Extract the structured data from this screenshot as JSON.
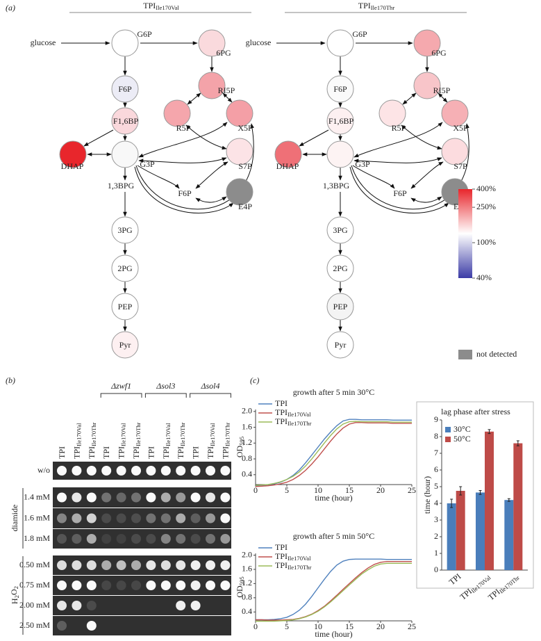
{
  "panel_a": {
    "label": "(a)",
    "diagrams": [
      {
        "title": {
          "text": "TPI",
          "sub": "Ile170Val"
        },
        "input": "glucose",
        "texts": [
          "1,3BPG",
          "F6P"
        ],
        "nodes": [
          {
            "label": "G6P",
            "color": "#ffffff"
          },
          {
            "label": "F6P",
            "color": "#ececf6"
          },
          {
            "label": "F1,6BP",
            "color": "#fad8dc"
          },
          {
            "label": "G3P",
            "color": "#f8f8f8"
          },
          {
            "label": "DHAP",
            "color": "#e8262c"
          },
          {
            "label": "3PG",
            "color": "#ffffff"
          },
          {
            "label": "2PG",
            "color": "#ffffff"
          },
          {
            "label": "PEP",
            "color": "#ffffff"
          },
          {
            "label": "Pyr",
            "color": "#fdf0f1"
          },
          {
            "label": "6PG",
            "color": "#fadadd"
          },
          {
            "label": "RI5P",
            "color": "#f4a3a9"
          },
          {
            "label": "R5P",
            "color": "#f5a6ac"
          },
          {
            "label": "X5P",
            "color": "#f49fa6"
          },
          {
            "label": "S7P",
            "color": "#fce3e6"
          },
          {
            "label": "E4P",
            "color": "#8c8c8c"
          }
        ]
      },
      {
        "title": {
          "text": "TPI",
          "sub": "Ile170Thr"
        },
        "input": "glucose",
        "texts": [
          "1,3BPG",
          "F6P"
        ],
        "nodes": [
          {
            "label": "G6P",
            "color": "#ffffff"
          },
          {
            "label": "F6P",
            "color": "#fafafa"
          },
          {
            "label": "F1,6BP",
            "color": "#fdf0f1"
          },
          {
            "label": "G3P",
            "color": "#fdf3f3"
          },
          {
            "label": "DHAP",
            "color": "#ef7077"
          },
          {
            "label": "3PG",
            "color": "#ffffff"
          },
          {
            "label": "2PG",
            "color": "#ffffff"
          },
          {
            "label": "PEP",
            "color": "#f4f4f4"
          },
          {
            "label": "Pyr",
            "color": "#ffffff"
          },
          {
            "label": "6PG",
            "color": "#f5a9ae"
          },
          {
            "label": "RI5P",
            "color": "#f8c5c9"
          },
          {
            "label": "R5P",
            "color": "#fde4e6"
          },
          {
            "label": "X5P",
            "color": "#f6b0b5"
          },
          {
            "label": "S7P",
            "color": "#fcdcdf"
          },
          {
            "label": "E4P",
            "color": "#8c8c8c"
          }
        ]
      }
    ],
    "colorbar": {
      "lim": [
        40,
        400
      ],
      "log": true,
      "colors": [
        "#3b3ba6",
        "#ffffff",
        "#e8262c"
      ],
      "ticks": [
        {
          "value": 400,
          "label": "400%"
        },
        {
          "value": 250,
          "label": "250%"
        },
        {
          "value": 100,
          "label": "100%"
        },
        {
          "value": 40,
          "label": "40%"
        }
      ]
    },
    "not_detected": {
      "label": "not detected",
      "color": "#8c8c8c"
    }
  },
  "panel_b": {
    "label": "(b)",
    "columns": [
      {
        "text": "TPI"
      },
      {
        "text": "TPI",
        "sub": "Ile170Val"
      },
      {
        "text": "TPI",
        "sub": "Ile170Thr"
      },
      {
        "text": "TPI"
      },
      {
        "text": "TPI",
        "sub": "Ile170Val"
      },
      {
        "text": "TPI",
        "sub": "Ile170Thr"
      },
      {
        "text": "TPI"
      },
      {
        "text": "TPI",
        "sub": "Ile170Val"
      },
      {
        "text": "TPI",
        "sub": "Ile170Thr"
      },
      {
        "text": "TPI"
      },
      {
        "text": "TPI",
        "sub": "Ile170Val"
      },
      {
        "text": "TPI",
        "sub": "Ile170Thr"
      }
    ],
    "groups": [
      "Δzwf1",
      "Δsol3",
      "Δsol4"
    ],
    "rows": [
      "w/o",
      "1.4 mM",
      "1.6 mM",
      "1.8 mM",
      "0.50 mM",
      "0.75 mM",
      "2.00 mM",
      "2.50 mM"
    ],
    "diamide": "diamide",
    "h2o2": [
      "H",
      "2",
      "O",
      "2"
    ]
  },
  "panel_c": {
    "label": "(c)"
  },
  "chart_data": [
    {
      "type": "line",
      "title": "growth after 5 min 30°C",
      "xlabel": "time (hour)",
      "ylabel": {
        "text": "OD",
        "sub": "595"
      },
      "x": [
        0,
        1,
        2,
        3,
        4,
        5,
        6,
        7,
        8,
        9,
        10,
        11,
        12,
        13,
        14,
        15,
        16,
        17,
        18,
        19,
        20,
        21,
        22,
        23,
        24,
        25
      ],
      "xlim": [
        0,
        25
      ],
      "xticks": [
        0,
        5,
        10,
        15,
        20,
        25
      ],
      "ylim": [
        0.15,
        2.05
      ],
      "yticks": [
        0.4,
        0.8,
        1.2,
        1.6,
        {
          "value": 2,
          "label": "2.0"
        }
      ],
      "series": [
        {
          "name": "TPI",
          "color": "#4f81bd",
          "values": [
            0.12,
            0.13,
            0.14,
            0.17,
            0.21,
            0.28,
            0.38,
            0.52,
            0.7,
            0.9,
            1.1,
            1.3,
            1.48,
            1.64,
            1.76,
            1.8,
            1.8,
            1.79,
            1.79,
            1.79,
            1.79,
            1.79,
            1.78,
            1.78,
            1.78,
            1.78
          ]
        },
        {
          "name": "TPI",
          "name_sub": "Ile170Val",
          "color": "#c0504d",
          "values": [
            0.1,
            0.11,
            0.12,
            0.14,
            0.17,
            0.21,
            0.28,
            0.38,
            0.51,
            0.67,
            0.85,
            1.05,
            1.25,
            1.43,
            1.58,
            1.68,
            1.72,
            1.72,
            1.71,
            1.71,
            1.71,
            1.71,
            1.7,
            1.7,
            1.7,
            1.7
          ]
        },
        {
          "name": "TPI",
          "name_sub": "Ile170Thr",
          "color": "#9bbb59",
          "values": [
            0.13,
            0.14,
            0.15,
            0.18,
            0.22,
            0.28,
            0.36,
            0.47,
            0.62,
            0.8,
            1.0,
            1.2,
            1.39,
            1.56,
            1.68,
            1.74,
            1.75,
            1.74,
            1.74,
            1.74,
            1.74,
            1.74,
            1.73,
            1.73,
            1.73,
            1.73
          ]
        }
      ]
    },
    {
      "type": "line",
      "title": "growth after 5 min 50°C",
      "xlabel": "time (hour)",
      "ylabel": {
        "text": "OD",
        "sub": "595"
      },
      "x": [
        0,
        1,
        2,
        3,
        4,
        5,
        6,
        7,
        8,
        9,
        10,
        11,
        12,
        13,
        14,
        15,
        16,
        17,
        18,
        19,
        20,
        21,
        22,
        23,
        24,
        25
      ],
      "xlim": [
        0,
        25
      ],
      "xticks": [
        0,
        5,
        10,
        15,
        20,
        25
      ],
      "ylim": [
        0.15,
        2.05
      ],
      "yticks": [
        0.4,
        0.8,
        1.2,
        1.6,
        {
          "value": 2,
          "label": "2.0"
        }
      ],
      "series": [
        {
          "name": "TPI",
          "color": "#4f81bd",
          "values": [
            0.18,
            0.18,
            0.18,
            0.19,
            0.21,
            0.25,
            0.33,
            0.45,
            0.62,
            0.84,
            1.08,
            1.32,
            1.54,
            1.72,
            1.83,
            1.88,
            1.89,
            1.89,
            1.89,
            1.89,
            1.89,
            1.88,
            1.88,
            1.88,
            1.88,
            1.88
          ]
        },
        {
          "name": "TPI",
          "name_sub": "Ile170Val",
          "color": "#c0504d",
          "values": [
            0.18,
            0.18,
            0.17,
            0.17,
            0.17,
            0.18,
            0.19,
            0.22,
            0.27,
            0.34,
            0.44,
            0.56,
            0.71,
            0.87,
            1.04,
            1.2,
            1.36,
            1.51,
            1.64,
            1.74,
            1.8,
            1.82,
            1.82,
            1.82,
            1.82,
            1.82
          ]
        },
        {
          "name": "TPI",
          "name_sub": "Ile170Thr",
          "color": "#9bbb59",
          "values": [
            0.14,
            0.14,
            0.14,
            0.14,
            0.15,
            0.16,
            0.18,
            0.21,
            0.26,
            0.33,
            0.42,
            0.54,
            0.68,
            0.84,
            1.0,
            1.16,
            1.32,
            1.47,
            1.59,
            1.69,
            1.75,
            1.77,
            1.77,
            1.77,
            1.77,
            1.77
          ]
        }
      ]
    },
    {
      "type": "bar",
      "title": "lag phase after stress",
      "ylabel": "time (hour)",
      "categories": [
        {
          "text": "TPI"
        },
        {
          "text": "TPI",
          "sub": "Ile170Val"
        },
        {
          "text": "TPI",
          "sub": "Ile170Thr"
        }
      ],
      "ylim": [
        0,
        9
      ],
      "yticks": [
        0,
        1,
        2,
        3,
        4,
        5,
        6,
        7,
        8,
        9
      ],
      "series": [
        {
          "name": "30°C",
          "color": "#4a7ebb",
          "values": [
            4.0,
            4.65,
            4.2
          ],
          "errors": [
            0.25,
            0.12,
            0.08
          ]
        },
        {
          "name": "50°C",
          "color": "#be4b48",
          "values": [
            4.75,
            8.3,
            7.6
          ],
          "errors": [
            0.25,
            0.12,
            0.15
          ]
        }
      ]
    }
  ]
}
